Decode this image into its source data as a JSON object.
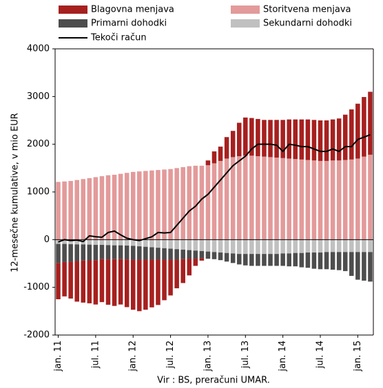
{
  "chart_data": {
    "type": "bar",
    "stacked": true,
    "y_label": "12-mesečne kumulative, v mio EUR",
    "source": "Vir : BS, preračuni  UMAR.",
    "categories": [
      "jan. 11",
      null,
      null,
      null,
      null,
      null,
      "jul. 11",
      null,
      null,
      null,
      null,
      null,
      "jan. 12",
      null,
      null,
      null,
      null,
      null,
      "jul. 12",
      null,
      null,
      null,
      null,
      null,
      "jan. 13",
      null,
      null,
      null,
      null,
      null,
      "jul. 13",
      null,
      null,
      null,
      null,
      null,
      "jan. 14",
      null,
      null,
      null,
      null,
      null,
      "jul. 14",
      null,
      null,
      null,
      null,
      null,
      "jan. 15",
      null,
      null
    ],
    "series": [
      {
        "name": "Blagovna menjava",
        "color": "#a6201f",
        "values": [
          -760,
          -720,
          -770,
          -850,
          -880,
          -900,
          -930,
          -900,
          -950,
          -980,
          -950,
          -1000,
          -1050,
          -1080,
          -1050,
          -1000,
          -950,
          -850,
          -750,
          -600,
          -500,
          -350,
          -150,
          -50,
          100,
          250,
          300,
          450,
          550,
          700,
          800,
          790,
          780,
          770,
          780,
          790,
          800,
          820,
          830,
          840,
          850,
          850,
          850,
          850,
          860,
          880,
          950,
          1050,
          1150,
          1250,
          1320
        ]
      },
      {
        "name": "Storitvena menjava",
        "color": "#e39a9a",
        "values": [
          1210,
          1220,
          1230,
          1250,
          1270,
          1290,
          1310,
          1330,
          1350,
          1360,
          1380,
          1400,
          1420,
          1430,
          1440,
          1450,
          1460,
          1470,
          1480,
          1500,
          1520,
          1540,
          1550,
          1550,
          1560,
          1600,
          1650,
          1700,
          1730,
          1750,
          1760,
          1760,
          1750,
          1740,
          1730,
          1720,
          1710,
          1700,
          1690,
          1680,
          1670,
          1660,
          1650,
          1650,
          1660,
          1660,
          1670,
          1680,
          1700,
          1740,
          1780
        ]
      },
      {
        "name": "Primarni dohodki",
        "color": "#4d4d4d",
        "values": [
          -400,
          -380,
          -370,
          -350,
          -340,
          -330,
          -320,
          -300,
          -300,
          -290,
          -290,
          -290,
          -290,
          -280,
          -270,
          -260,
          -250,
          -240,
          -230,
          -220,
          -200,
          -180,
          -170,
          -150,
          -150,
          -150,
          -160,
          -180,
          -200,
          -220,
          -240,
          -250,
          -250,
          -250,
          -250,
          -250,
          -260,
          -270,
          -280,
          -300,
          -320,
          -340,
          -350,
          -360,
          -370,
          -380,
          -400,
          -500,
          -580,
          -600,
          -620
        ]
      },
      {
        "name": "Sekundarni dohodki",
        "color": "#c0c0c0",
        "values": [
          -90,
          -90,
          -95,
          -100,
          -100,
          -105,
          -110,
          -110,
          -115,
          -120,
          -120,
          -125,
          -130,
          -140,
          -150,
          -160,
          -170,
          -180,
          -190,
          -200,
          -210,
          -220,
          -230,
          -240,
          -250,
          -260,
          -270,
          -280,
          -290,
          -300,
          -300,
          -300,
          -300,
          -300,
          -300,
          -300,
          -290,
          -290,
          -280,
          -280,
          -270,
          -270,
          -270,
          -260,
          -260,
          -260,
          -260,
          -260,
          -260,
          -260,
          -260
        ]
      },
      {
        "name": "Tekoči račun",
        "color": "#000000",
        "type": "line",
        "values": [
          -50,
          0,
          -20,
          -10,
          -40,
          80,
          60,
          50,
          150,
          180,
          100,
          30,
          0,
          -20,
          20,
          60,
          150,
          140,
          150,
          300,
          450,
          600,
          700,
          850,
          950,
          1100,
          1250,
          1400,
          1550,
          1650,
          1750,
          1900,
          2000,
          2000,
          2000,
          1980,
          1850,
          2000,
          1980,
          1950,
          1950,
          1900,
          1850,
          1850,
          1900,
          1850,
          1950,
          1950,
          2100,
          2150,
          2200
        ]
      }
    ],
    "ylim": [
      -2000,
      4000
    ],
    "yticks": [
      -2000,
      -1000,
      0,
      1000,
      2000,
      3000,
      4000
    ],
    "grid": false
  }
}
